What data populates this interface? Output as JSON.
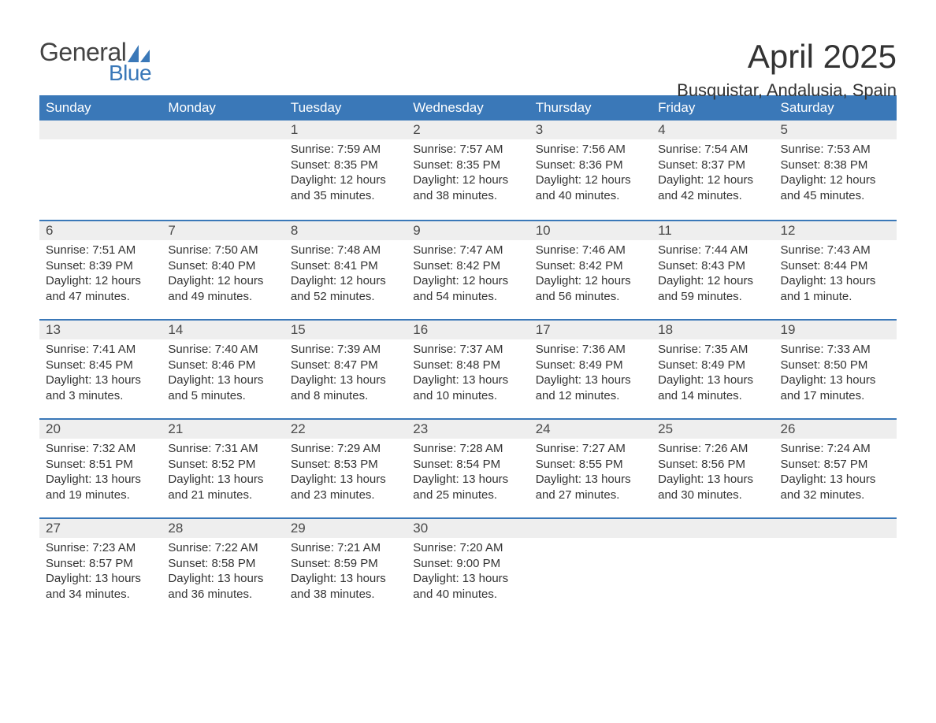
{
  "logo": {
    "text_general": "General",
    "text_blue": "Blue",
    "sail_color": "#3a78b8",
    "general_color": "#444444"
  },
  "title": "April 2025",
  "location": "Busquistar, Andalusia, Spain",
  "colors": {
    "header_bg": "#3a78b8",
    "header_text": "#ffffff",
    "daynum_bg": "#eeeeee",
    "row_divider": "#3a78b8",
    "body_text": "#333333",
    "background": "#ffffff"
  },
  "typography": {
    "title_fontsize": 42,
    "location_fontsize": 22,
    "header_fontsize": 17,
    "daynum_fontsize": 17,
    "body_fontsize": 15,
    "font_family": "Arial"
  },
  "day_headers": [
    "Sunday",
    "Monday",
    "Tuesday",
    "Wednesday",
    "Thursday",
    "Friday",
    "Saturday"
  ],
  "labels": {
    "sunrise": "Sunrise:",
    "sunset": "Sunset:",
    "daylight": "Daylight:"
  },
  "weeks": [
    [
      null,
      null,
      {
        "n": "1",
        "sunrise": "7:59 AM",
        "sunset": "8:35 PM",
        "daylight": "12 hours and 35 minutes."
      },
      {
        "n": "2",
        "sunrise": "7:57 AM",
        "sunset": "8:35 PM",
        "daylight": "12 hours and 38 minutes."
      },
      {
        "n": "3",
        "sunrise": "7:56 AM",
        "sunset": "8:36 PM",
        "daylight": "12 hours and 40 minutes."
      },
      {
        "n": "4",
        "sunrise": "7:54 AM",
        "sunset": "8:37 PM",
        "daylight": "12 hours and 42 minutes."
      },
      {
        "n": "5",
        "sunrise": "7:53 AM",
        "sunset": "8:38 PM",
        "daylight": "12 hours and 45 minutes."
      }
    ],
    [
      {
        "n": "6",
        "sunrise": "7:51 AM",
        "sunset": "8:39 PM",
        "daylight": "12 hours and 47 minutes."
      },
      {
        "n": "7",
        "sunrise": "7:50 AM",
        "sunset": "8:40 PM",
        "daylight": "12 hours and 49 minutes."
      },
      {
        "n": "8",
        "sunrise": "7:48 AM",
        "sunset": "8:41 PM",
        "daylight": "12 hours and 52 minutes."
      },
      {
        "n": "9",
        "sunrise": "7:47 AM",
        "sunset": "8:42 PM",
        "daylight": "12 hours and 54 minutes."
      },
      {
        "n": "10",
        "sunrise": "7:46 AM",
        "sunset": "8:42 PM",
        "daylight": "12 hours and 56 minutes."
      },
      {
        "n": "11",
        "sunrise": "7:44 AM",
        "sunset": "8:43 PM",
        "daylight": "12 hours and 59 minutes."
      },
      {
        "n": "12",
        "sunrise": "7:43 AM",
        "sunset": "8:44 PM",
        "daylight": "13 hours and 1 minute."
      }
    ],
    [
      {
        "n": "13",
        "sunrise": "7:41 AM",
        "sunset": "8:45 PM",
        "daylight": "13 hours and 3 minutes."
      },
      {
        "n": "14",
        "sunrise": "7:40 AM",
        "sunset": "8:46 PM",
        "daylight": "13 hours and 5 minutes."
      },
      {
        "n": "15",
        "sunrise": "7:39 AM",
        "sunset": "8:47 PM",
        "daylight": "13 hours and 8 minutes."
      },
      {
        "n": "16",
        "sunrise": "7:37 AM",
        "sunset": "8:48 PM",
        "daylight": "13 hours and 10 minutes."
      },
      {
        "n": "17",
        "sunrise": "7:36 AM",
        "sunset": "8:49 PM",
        "daylight": "13 hours and 12 minutes."
      },
      {
        "n": "18",
        "sunrise": "7:35 AM",
        "sunset": "8:49 PM",
        "daylight": "13 hours and 14 minutes."
      },
      {
        "n": "19",
        "sunrise": "7:33 AM",
        "sunset": "8:50 PM",
        "daylight": "13 hours and 17 minutes."
      }
    ],
    [
      {
        "n": "20",
        "sunrise": "7:32 AM",
        "sunset": "8:51 PM",
        "daylight": "13 hours and 19 minutes."
      },
      {
        "n": "21",
        "sunrise": "7:31 AM",
        "sunset": "8:52 PM",
        "daylight": "13 hours and 21 minutes."
      },
      {
        "n": "22",
        "sunrise": "7:29 AM",
        "sunset": "8:53 PM",
        "daylight": "13 hours and 23 minutes."
      },
      {
        "n": "23",
        "sunrise": "7:28 AM",
        "sunset": "8:54 PM",
        "daylight": "13 hours and 25 minutes."
      },
      {
        "n": "24",
        "sunrise": "7:27 AM",
        "sunset": "8:55 PM",
        "daylight": "13 hours and 27 minutes."
      },
      {
        "n": "25",
        "sunrise": "7:26 AM",
        "sunset": "8:56 PM",
        "daylight": "13 hours and 30 minutes."
      },
      {
        "n": "26",
        "sunrise": "7:24 AM",
        "sunset": "8:57 PM",
        "daylight": "13 hours and 32 minutes."
      }
    ],
    [
      {
        "n": "27",
        "sunrise": "7:23 AM",
        "sunset": "8:57 PM",
        "daylight": "13 hours and 34 minutes."
      },
      {
        "n": "28",
        "sunrise": "7:22 AM",
        "sunset": "8:58 PM",
        "daylight": "13 hours and 36 minutes."
      },
      {
        "n": "29",
        "sunrise": "7:21 AM",
        "sunset": "8:59 PM",
        "daylight": "13 hours and 38 minutes."
      },
      {
        "n": "30",
        "sunrise": "7:20 AM",
        "sunset": "9:00 PM",
        "daylight": "13 hours and 40 minutes."
      },
      null,
      null,
      null
    ]
  ]
}
